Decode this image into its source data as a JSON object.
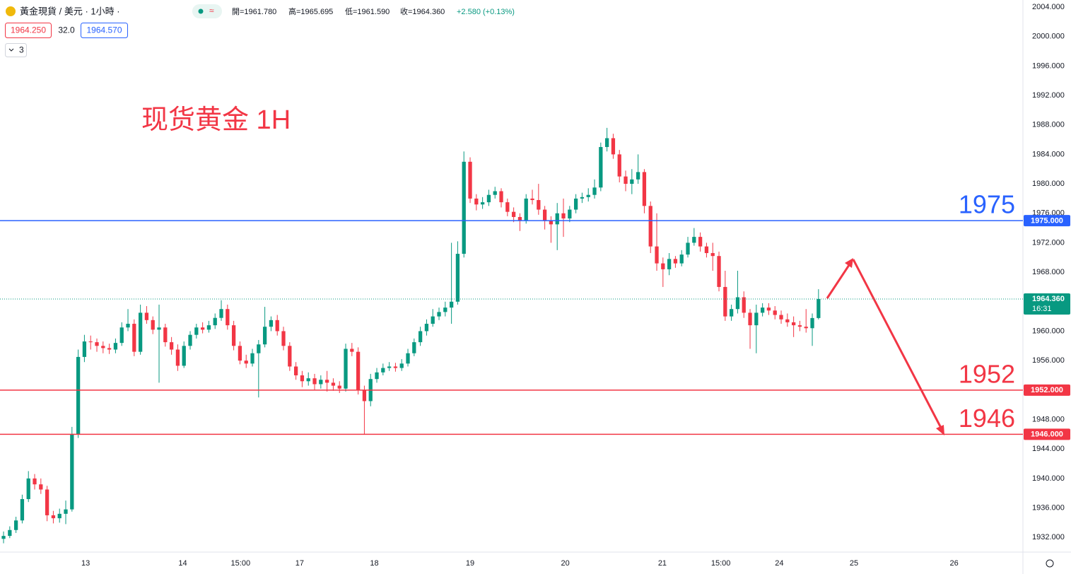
{
  "chart_data": {
    "type": "candlestick",
    "header": {
      "symbol": "黃金現貨 / 美元 · 1小時 ·",
      "open": "開=1961.780",
      "high": "高=1965.695",
      "low": "低=1961.590",
      "close": "收=1964.360",
      "change": "+2.580 (+0.13%)",
      "bid": "1964.250",
      "spread": "32.0",
      "ask": "1964.570",
      "indicators": "3"
    },
    "annotation": "现货黄金 1H",
    "up_color": "#089981",
    "down_color": "#f23645",
    "grid": false,
    "xlim": [
      -0.57,
      163.86
    ],
    "xticks": [
      {
        "value": 13.2,
        "label": "13"
      },
      {
        "value": 28.8,
        "label": "14"
      },
      {
        "value": 38.1,
        "label": "15:00"
      },
      {
        "value": 47.6,
        "label": "17"
      },
      {
        "value": 59.6,
        "label": "18"
      },
      {
        "value": 75,
        "label": "19"
      },
      {
        "value": 90.3,
        "label": "20"
      },
      {
        "value": 105.9,
        "label": "21"
      },
      {
        "value": 115.3,
        "label": "15:00"
      },
      {
        "value": 124.7,
        "label": "24"
      },
      {
        "value": 136.7,
        "label": "25"
      },
      {
        "value": 152.8,
        "label": "26"
      }
    ],
    "ylim": [
      1930.1,
      2004.96
    ],
    "yticks": [
      {
        "value": 1932,
        "label": "1932.000"
      },
      {
        "value": 1936,
        "label": "1936.000"
      },
      {
        "value": 1940,
        "label": "1940.000"
      },
      {
        "value": 1944,
        "label": "1944.000"
      },
      {
        "value": 1948,
        "label": "1948.000"
      },
      {
        "value": 1952,
        "label": "1952.000"
      },
      {
        "value": 1956,
        "label": "1956.000"
      },
      {
        "value": 1960,
        "label": "1960.000"
      },
      {
        "value": 1964,
        "label": "1964.000"
      },
      {
        "value": 1968,
        "label": "1968.000"
      },
      {
        "value": 1972,
        "label": "1972.000"
      },
      {
        "value": 1976,
        "label": "1976.000"
      },
      {
        "value": 1980,
        "label": "1980.000"
      },
      {
        "value": 1984,
        "label": "1984.000"
      },
      {
        "value": 1988,
        "label": "1988.000"
      },
      {
        "value": 1992,
        "label": "1992.000"
      },
      {
        "value": 1996,
        "label": "1996.000"
      },
      {
        "value": 2000,
        "label": "2000.000"
      },
      {
        "value": 2004,
        "label": "2004.000"
      }
    ],
    "hlines": [
      {
        "value": 1975,
        "label": "1975.000",
        "text": "1975",
        "color": "#2962ff"
      },
      {
        "value": 1952,
        "label": "1952.000",
        "text": "1952",
        "color": "#f23645"
      },
      {
        "value": 1946,
        "label": "1946.000",
        "text": "1946",
        "color": "#f23645"
      }
    ],
    "last_price": {
      "value": 1964.36,
      "label": "1964.360",
      "countdown": "16:31"
    },
    "ohlc": [
      [
        1931.8,
        1932.8,
        1931.2,
        1932.2
      ],
      [
        1932.2,
        1933.5,
        1931.9,
        1933
      ],
      [
        1933,
        1934.8,
        1932.6,
        1934.3
      ],
      [
        1934.3,
        1937.8,
        1933.9,
        1937.2
      ],
      [
        1937.2,
        1941,
        1936.8,
        1940
      ],
      [
        1940,
        1940.6,
        1938.5,
        1939.2
      ],
      [
        1939.2,
        1940,
        1937.9,
        1938.5
      ],
      [
        1938.5,
        1939,
        1934.2,
        1935
      ],
      [
        1935,
        1935.6,
        1933.9,
        1934.6
      ],
      [
        1934.6,
        1935.9,
        1934,
        1935.2
      ],
      [
        1935.2,
        1937,
        1933.8,
        1935.8
      ],
      [
        1935.8,
        1947,
        1935.5,
        1946
      ],
      [
        1946,
        1957.5,
        1945.5,
        1956.5
      ],
      [
        1956.5,
        1959.5,
        1955.8,
        1958.6
      ],
      [
        1958.6,
        1959.4,
        1957.5,
        1958.5
      ],
      [
        1958.5,
        1959,
        1957.2,
        1958
      ],
      [
        1958,
        1958.6,
        1957,
        1957.7
      ],
      [
        1957.7,
        1958.3,
        1956.9,
        1957.5
      ],
      [
        1957.5,
        1959,
        1957,
        1958.4
      ],
      [
        1958.4,
        1961.2,
        1958,
        1960.5
      ],
      [
        1960.5,
        1963,
        1960,
        1961
      ],
      [
        1961,
        1961.6,
        1956.6,
        1957.2
      ],
      [
        1957.2,
        1963.6,
        1956.8,
        1962.5
      ],
      [
        1962.5,
        1963.4,
        1961,
        1961.5
      ],
      [
        1961.5,
        1962,
        1959.6,
        1960.2
      ],
      [
        1960.2,
        1963.6,
        1953,
        1960.5
      ],
      [
        1960.5,
        1961,
        1957.9,
        1958.5
      ],
      [
        1958.5,
        1959.2,
        1956.8,
        1957.5
      ],
      [
        1957.5,
        1958.2,
        1954.6,
        1955.3
      ],
      [
        1955.3,
        1958.6,
        1955,
        1958
      ],
      [
        1958,
        1960,
        1957.5,
        1959.5
      ],
      [
        1959.5,
        1961,
        1959,
        1960.5
      ],
      [
        1960.5,
        1961.2,
        1959.7,
        1960.2
      ],
      [
        1960.2,
        1961.4,
        1959.8,
        1960.8
      ],
      [
        1960.8,
        1962.4,
        1960.3,
        1961.8
      ],
      [
        1961.8,
        1964.2,
        1961.4,
        1963
      ],
      [
        1963,
        1963.6,
        1960.2,
        1960.8
      ],
      [
        1960.8,
        1961.4,
        1957.4,
        1958
      ],
      [
        1958,
        1958.6,
        1955.5,
        1956
      ],
      [
        1956,
        1956.8,
        1955,
        1955.6
      ],
      [
        1955.6,
        1957.6,
        1955.2,
        1957
      ],
      [
        1957,
        1958.8,
        1951,
        1958.2
      ],
      [
        1958.2,
        1963.3,
        1957.8,
        1960.6
      ],
      [
        1960.6,
        1962,
        1960,
        1961.5
      ],
      [
        1961.5,
        1962.2,
        1959.4,
        1960
      ],
      [
        1960,
        1960.6,
        1957.4,
        1958
      ],
      [
        1958,
        1958.5,
        1954.6,
        1955.2
      ],
      [
        1955.2,
        1955.8,
        1953.4,
        1954
      ],
      [
        1954,
        1954.6,
        1952.4,
        1953.2
      ],
      [
        1953.2,
        1954.4,
        1952.6,
        1953.6
      ],
      [
        1953.6,
        1954.2,
        1952,
        1952.8
      ],
      [
        1952.8,
        1954,
        1952.2,
        1953.4
      ],
      [
        1953.4,
        1954.6,
        1951.8,
        1953
      ],
      [
        1953,
        1953.6,
        1951.9,
        1952.6
      ],
      [
        1952.6,
        1953.2,
        1951.6,
        1952.2
      ],
      [
        1952.2,
        1958.3,
        1951.8,
        1957.6
      ],
      [
        1957.6,
        1958.4,
        1956.6,
        1957.2
      ],
      [
        1957.2,
        1957.8,
        1951.4,
        1952
      ],
      [
        1952,
        1952.6,
        1946,
        1950.5
      ],
      [
        1950.5,
        1954.2,
        1949.8,
        1953.5
      ],
      [
        1953.5,
        1955,
        1953,
        1954.4
      ],
      [
        1954.4,
        1955.6,
        1954,
        1955
      ],
      [
        1955,
        1955.8,
        1954.6,
        1955.2
      ],
      [
        1955.2,
        1955.7,
        1954.5,
        1955
      ],
      [
        1955,
        1956.2,
        1954.6,
        1955.6
      ],
      [
        1955.6,
        1957.6,
        1955.2,
        1957
      ],
      [
        1957,
        1959,
        1956.6,
        1958.5
      ],
      [
        1958.5,
        1960.6,
        1958,
        1960
      ],
      [
        1960,
        1961.6,
        1959.4,
        1961
      ],
      [
        1961,
        1963,
        1960.6,
        1962
      ],
      [
        1962,
        1963.2,
        1961.5,
        1962.6
      ],
      [
        1962.6,
        1964,
        1962,
        1963.2
      ],
      [
        1963.2,
        1972,
        1961,
        1964
      ],
      [
        1964,
        1972.2,
        1963.6,
        1970.5
      ],
      [
        1970.5,
        1984.4,
        1970,
        1983
      ],
      [
        1983,
        1983.6,
        1977.4,
        1978
      ],
      [
        1978,
        1978.6,
        1976.4,
        1977.2
      ],
      [
        1977.2,
        1978.2,
        1976.6,
        1977.5
      ],
      [
        1977.5,
        1979.2,
        1977,
        1978.5
      ],
      [
        1978.5,
        1979.6,
        1978,
        1979
      ],
      [
        1979,
        1979.4,
        1976.8,
        1977.5
      ],
      [
        1977.5,
        1978,
        1975.6,
        1976.2
      ],
      [
        1976.2,
        1976.8,
        1974.8,
        1975.5
      ],
      [
        1975.5,
        1976,
        1973.6,
        1975
      ],
      [
        1975,
        1978.6,
        1974.6,
        1978
      ],
      [
        1978,
        1979.2,
        1977.2,
        1977.8
      ],
      [
        1977.8,
        1980,
        1975.8,
        1976.5
      ],
      [
        1976.5,
        1977,
        1973.8,
        1975
      ],
      [
        1975,
        1975.6,
        1972,
        1974.5
      ],
      [
        1974.5,
        1977.4,
        1971,
        1976
      ],
      [
        1976,
        1978,
        1972.8,
        1975.3
      ],
      [
        1975.3,
        1977,
        1974.8,
        1976.5
      ],
      [
        1976.5,
        1978.6,
        1976,
        1978
      ],
      [
        1978,
        1978.8,
        1977.4,
        1978.2
      ],
      [
        1978.2,
        1979.4,
        1977.6,
        1978.5
      ],
      [
        1978.5,
        1980.6,
        1978,
        1979.5
      ],
      [
        1979.5,
        1985.6,
        1979,
        1985
      ],
      [
        1985,
        1987.6,
        1984.4,
        1986.2
      ],
      [
        1986.2,
        1986.8,
        1983.4,
        1984
      ],
      [
        1984,
        1984.6,
        1980.2,
        1981
      ],
      [
        1981,
        1981.8,
        1979,
        1980
      ],
      [
        1980,
        1982,
        1978.6,
        1980.6
      ],
      [
        1980.6,
        1984,
        1980,
        1981.6
      ],
      [
        1981.6,
        1982,
        1976,
        1977
      ],
      [
        1977,
        1977.6,
        1970.6,
        1971.5
      ],
      [
        1971.5,
        1976,
        1968.2,
        1969.2
      ],
      [
        1969.2,
        1970,
        1966,
        1968.4
      ],
      [
        1968.4,
        1970.6,
        1967.6,
        1969.8
      ],
      [
        1969.8,
        1970.2,
        1968.6,
        1969.2
      ],
      [
        1969.2,
        1971,
        1968.8,
        1970.4
      ],
      [
        1970.4,
        1972.8,
        1970,
        1972
      ],
      [
        1972,
        1974,
        1971.6,
        1972.8
      ],
      [
        1972.8,
        1973.4,
        1970.8,
        1971.5
      ],
      [
        1971.5,
        1972,
        1970,
        1970.6
      ],
      [
        1970.6,
        1972,
        1968.2,
        1970.2
      ],
      [
        1970.2,
        1970.8,
        1965.4,
        1966
      ],
      [
        1966,
        1968.2,
        1961.4,
        1962
      ],
      [
        1962,
        1963.6,
        1961.4,
        1963
      ],
      [
        1963,
        1968.2,
        1962.4,
        1964.6
      ],
      [
        1964.6,
        1965.4,
        1961.8,
        1962.5
      ],
      [
        1962.5,
        1963,
        1957.6,
        1960.8
      ],
      [
        1960.8,
        1963.6,
        1957,
        1962.5
      ],
      [
        1962.5,
        1963.8,
        1962,
        1963.2
      ],
      [
        1963.2,
        1963.8,
        1962.2,
        1962.8
      ],
      [
        1962.8,
        1963.4,
        1961.6,
        1962.2
      ],
      [
        1962.2,
        1962.8,
        1961,
        1961.6
      ],
      [
        1961.6,
        1962.4,
        1960.6,
        1961.2
      ],
      [
        1961.2,
        1962,
        1959.2,
        1960.8
      ],
      [
        1960.8,
        1961.4,
        1960,
        1960.6
      ],
      [
        1960.6,
        1963,
        1959.8,
        1960.4
      ],
      [
        1960.4,
        1962.4,
        1958,
        1961.78
      ],
      [
        1961.78,
        1965.695,
        1961.59,
        1964.36
      ]
    ]
  }
}
